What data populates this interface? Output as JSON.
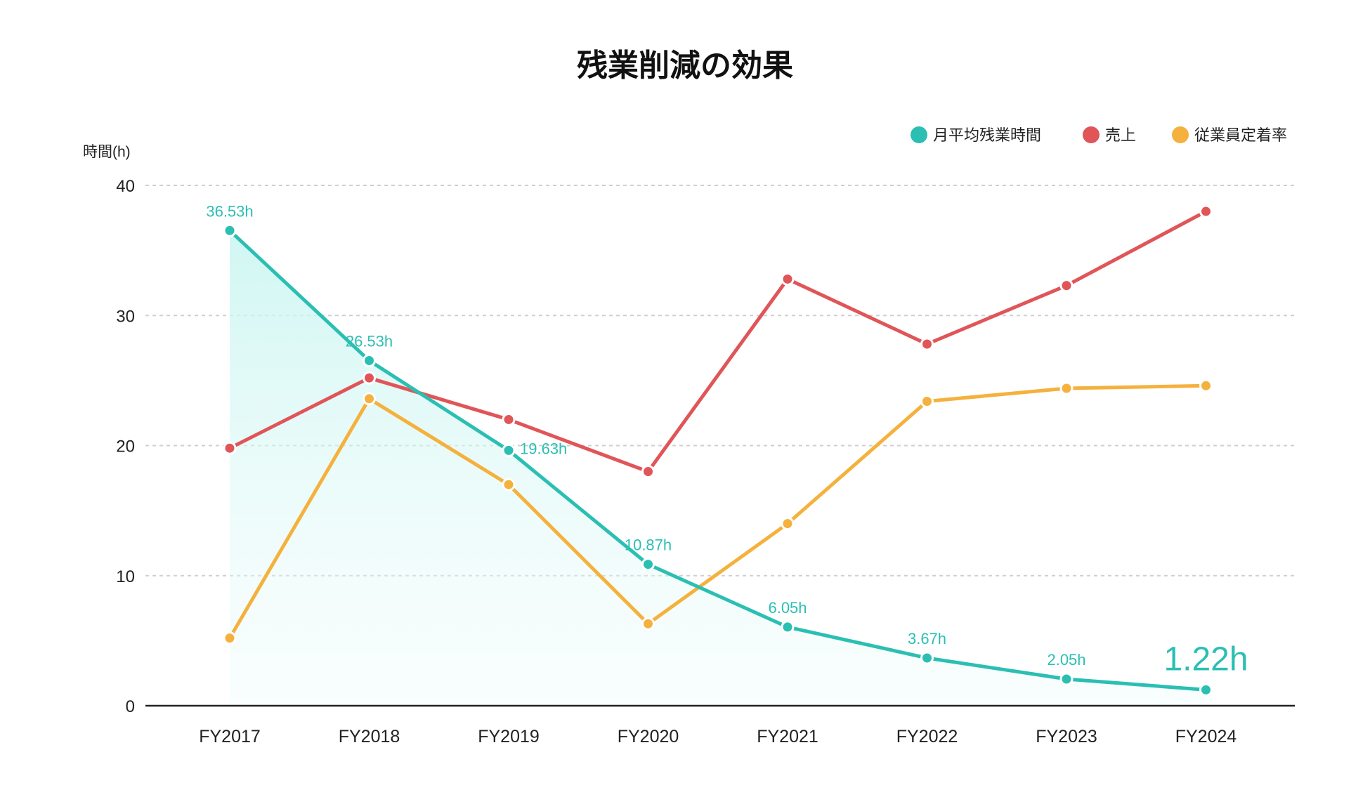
{
  "chart_data": {
    "type": "line",
    "title": "残業削減の効果",
    "ylabel": "時間(h)",
    "xlabel": "",
    "ylim": [
      0,
      40
    ],
    "yticks": [
      0,
      10,
      20,
      30,
      40
    ],
    "grid": true,
    "legend_position": "top-right",
    "categories": [
      "FY2017",
      "FY2018",
      "FY2019",
      "FY2020",
      "FY2021",
      "FY2022",
      "FY2023",
      "FY2024"
    ],
    "series": [
      {
        "name": "月平均残業時間",
        "color": "#2bbfb3",
        "values": [
          36.53,
          26.53,
          19.63,
          10.87,
          6.05,
          3.67,
          2.05,
          1.22
        ],
        "labels": [
          "36.53h",
          "26.53h",
          "19.63h",
          "10.87h",
          "6.05h",
          "3.67h",
          "2.05h",
          "1.22h"
        ],
        "area_fill": true
      },
      {
        "name": "売上",
        "color": "#e05558",
        "values": [
          19.8,
          25.2,
          22.0,
          18.0,
          32.8,
          27.8,
          32.3,
          38.0
        ]
      },
      {
        "name": "従業員定着率",
        "color": "#f5b13d",
        "values": [
          5.2,
          23.6,
          17.0,
          6.3,
          14.0,
          23.4,
          24.4,
          24.6
        ]
      }
    ]
  }
}
